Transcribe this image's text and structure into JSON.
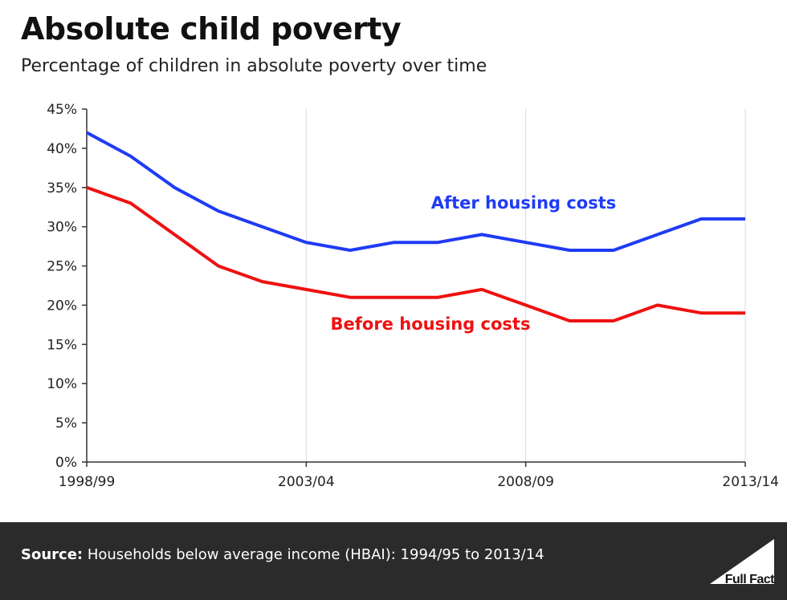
{
  "title": "Absolute child poverty",
  "subtitle": "Percentage of children in absolute poverty over time",
  "footer": {
    "source_label": "Source:",
    "source_text": "Households below average income (HBAI): 1994/95 to 2013/14",
    "logo_text": "Full Fact"
  },
  "colors": {
    "after": "#1f3bf5",
    "before": "#ee1111"
  },
  "chart_data": {
    "type": "line",
    "x": [
      "1998/99",
      "1999/00",
      "2000/01",
      "2001/02",
      "2002/03",
      "2003/04",
      "2004/05",
      "2005/06",
      "2006/07",
      "2007/08",
      "2008/09",
      "2009/10",
      "2010/11",
      "2011/12",
      "2012/13",
      "2013/14"
    ],
    "x_tick_labels": [
      "1998/99",
      "2003/04",
      "2008/09",
      "2013/14"
    ],
    "y_tick_labels": [
      "0%",
      "5%",
      "10%",
      "15%",
      "20%",
      "25%",
      "30%",
      "35%",
      "40%",
      "45%"
    ],
    "ylim": [
      0,
      45
    ],
    "grid": "vertical",
    "series": [
      {
        "name": "After housing costs",
        "values": [
          42,
          39,
          35,
          32,
          30,
          28,
          27,
          28,
          28,
          29,
          28,
          27,
          27,
          29,
          31,
          31
        ]
      },
      {
        "name": "Before housing costs",
        "values": [
          35,
          33,
          29,
          25,
          23,
          22,
          21,
          21,
          21,
          22,
          20,
          18,
          18,
          20,
          19,
          19
        ]
      }
    ]
  }
}
